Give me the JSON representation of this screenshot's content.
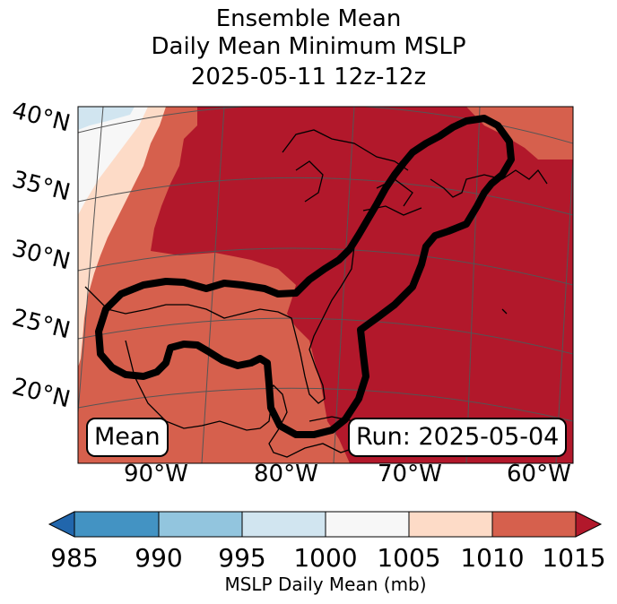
{
  "title": {
    "line1": "Ensemble Mean",
    "line2": "Daily Mean Minimum MSLP",
    "line3": "2025-05-11 12z-12z"
  },
  "map": {
    "lat_labels": [
      "40°N",
      "35°N",
      "30°N",
      "25°N",
      "20°N"
    ],
    "lon_labels": [
      "90°W",
      "80°W",
      "70°W",
      "60°W"
    ],
    "left_box": "Mean",
    "right_box": "Run: 2025-05-04",
    "colors": {
      "c985_990": "#4393c3",
      "c990_995": "#92c5de",
      "c995_1000": "#d1e5f0",
      "c1000_1005": "#f7f7f7",
      "c1005_1010": "#fddbc7",
      "c1010_1015": "#d6604d",
      "c_over": "#b2182b",
      "c_under": "#2166ac"
    }
  },
  "colorbar": {
    "ticks": [
      "985",
      "990",
      "995",
      "1000",
      "1005",
      "1010",
      "1015"
    ],
    "label": "MSLP Daily Mean (mb)"
  }
}
